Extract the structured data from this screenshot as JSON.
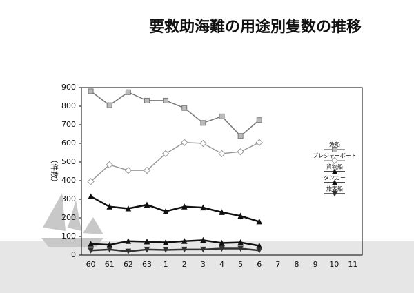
{
  "chart_data": {
    "type": "line",
    "title": "要救助海難の用途別隻数の推移",
    "ylabel": "（件数）",
    "categories": [
      "60",
      "61",
      "62",
      "63",
      "1",
      "2",
      "3",
      "4",
      "5",
      "6",
      "7",
      "8",
      "9",
      "10",
      "11"
    ],
    "ylim": [
      0,
      900
    ],
    "yticks": [
      0,
      100,
      200,
      300,
      400,
      500,
      600,
      700,
      800,
      900
    ],
    "series": [
      {
        "name": "漁船",
        "color": "#777777",
        "marker": "square",
        "values": [
          880,
          805,
          875,
          830,
          830,
          790,
          710,
          745,
          640,
          725,
          null,
          null,
          null,
          null,
          null
        ]
      },
      {
        "name": "プレジャーボート",
        "color": "#999999",
        "marker": "diamond",
        "values": [
          395,
          485,
          455,
          455,
          545,
          605,
          600,
          545,
          555,
          605,
          null,
          null,
          null,
          null,
          null
        ]
      },
      {
        "name": "貨物船",
        "color": "#111111",
        "marker": "triangle",
        "values": [
          315,
          260,
          250,
          270,
          235,
          260,
          255,
          230,
          210,
          180,
          null,
          null,
          null,
          null,
          null
        ]
      },
      {
        "name": "タンカー",
        "color": "#111111",
        "marker": "triangle",
        "values": [
          60,
          55,
          75,
          72,
          68,
          75,
          80,
          65,
          68,
          50,
          null,
          null,
          null,
          null,
          null
        ]
      },
      {
        "name": "旅客船",
        "color": "#333333",
        "marker": "invtriangle",
        "values": [
          25,
          30,
          20,
          30,
          28,
          30,
          30,
          35,
          35,
          25,
          null,
          null,
          null,
          null,
          null
        ]
      }
    ]
  }
}
